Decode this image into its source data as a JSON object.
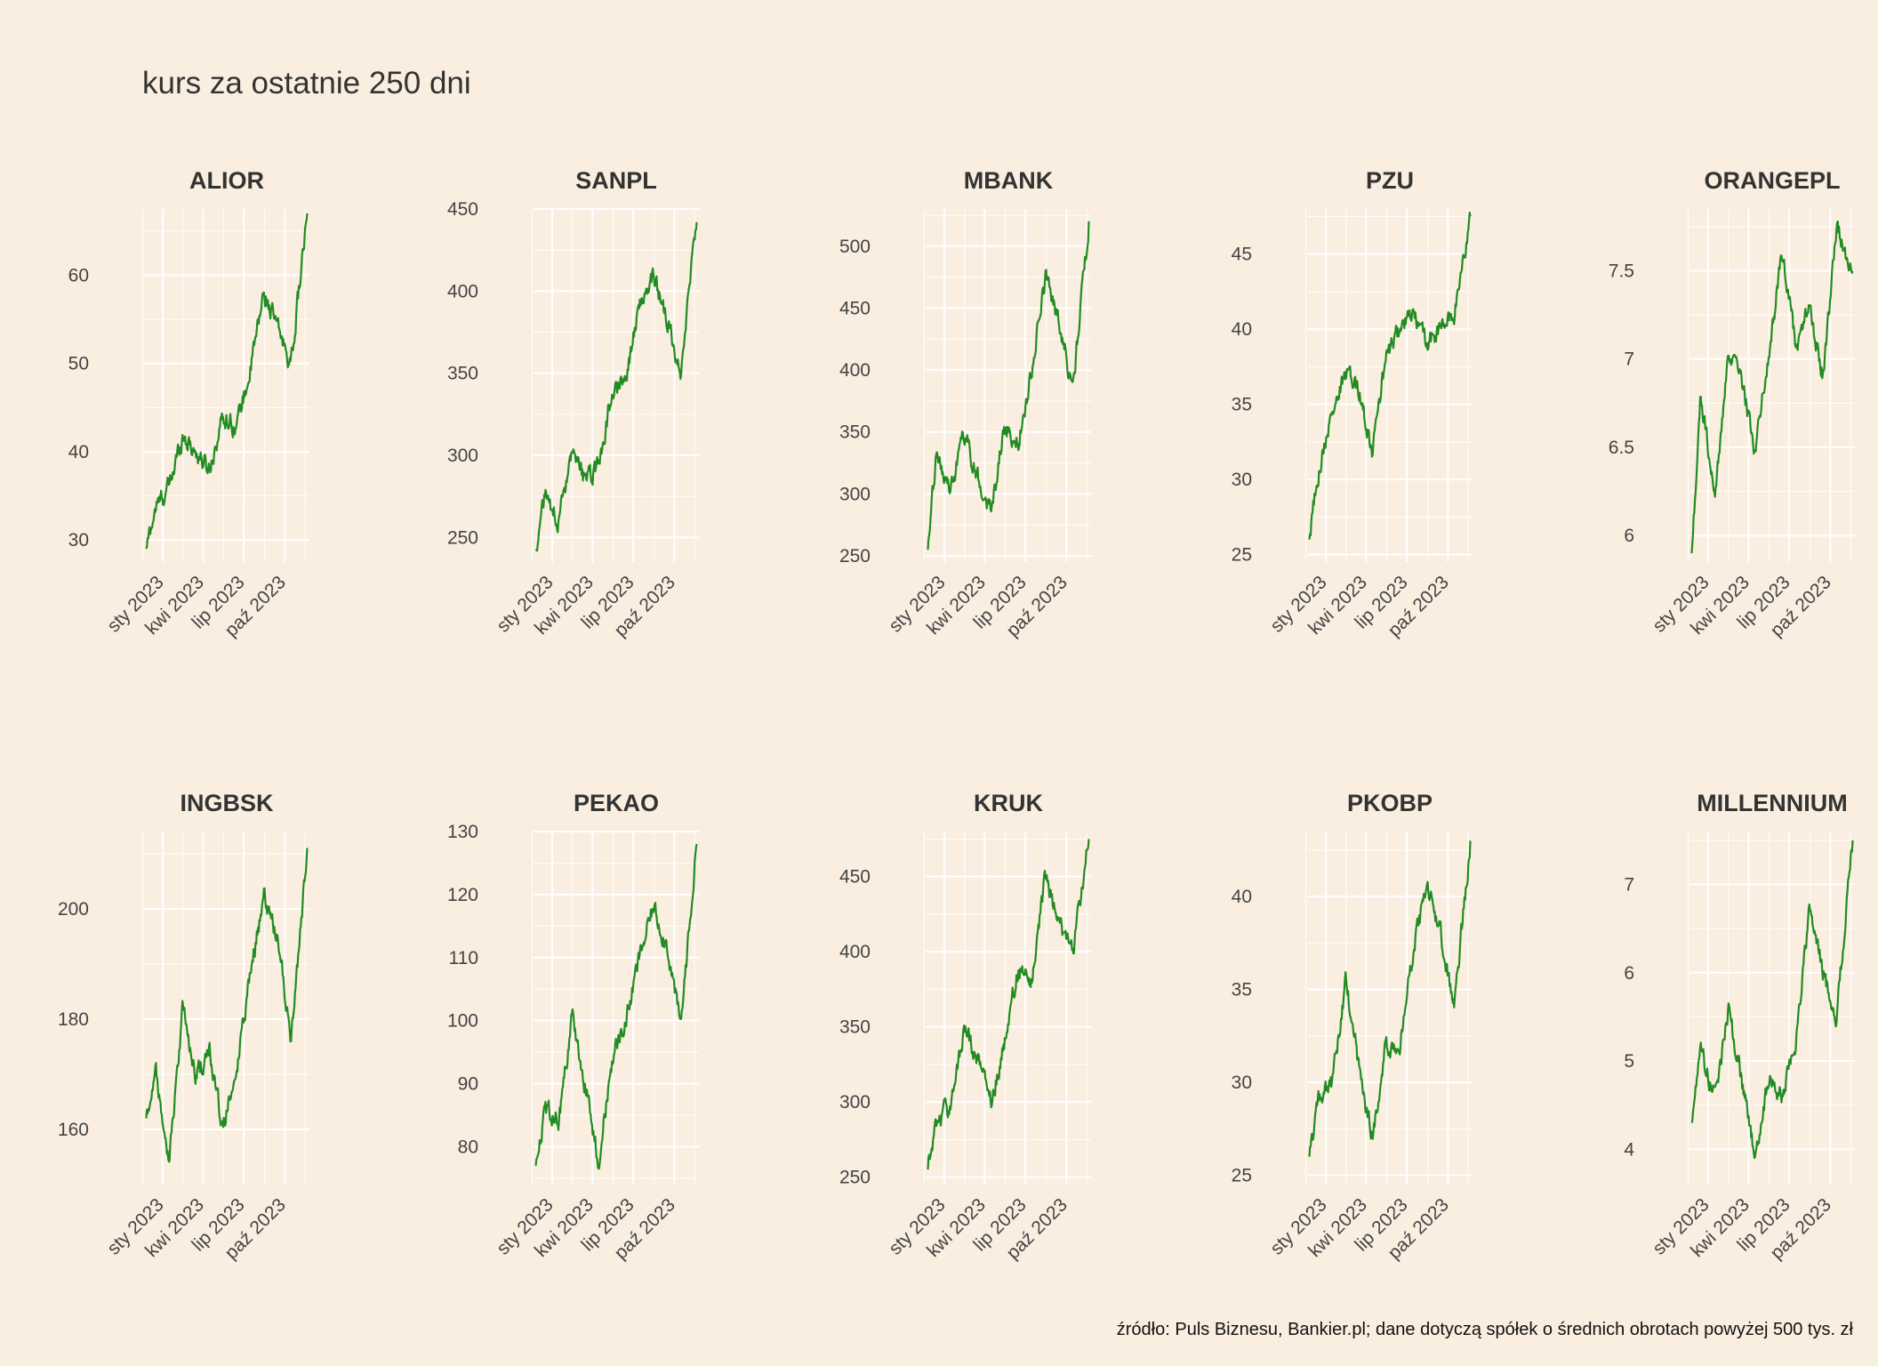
{
  "title": "kurs za ostatnie 250 dni",
  "source": "źródło: Puls Biznesu, Bankier.pl; dane dotyczą spółek o średnich obrotach powyżej 500 tys. zł",
  "colors": {
    "background": "#faeee0",
    "grid": "#ffffff",
    "line": "#228b22",
    "text": "#333333"
  },
  "chart_data": [
    {
      "type": "line",
      "title": "ALIOR",
      "x_ticks": [
        "sty 2023",
        "kwi 2023",
        "lip 2023",
        "paź 2023"
      ],
      "y_ticks": [
        30,
        40,
        50,
        60
      ],
      "ylim": [
        27.5,
        67.5
      ],
      "x": [
        "2022-11",
        "2022-12",
        "2023-01",
        "2023-02",
        "2023-03",
        "2023-04",
        "2023-05",
        "2023-06",
        "2023-07",
        "2023-08",
        "2023-09",
        "2023-10",
        "2023-11"
      ],
      "values": [
        29,
        33.5,
        36,
        42,
        40,
        38,
        44,
        43,
        49,
        58,
        54,
        50,
        67
      ]
    },
    {
      "type": "line",
      "title": "SANPL",
      "x_ticks": [
        "sty 2023",
        "kwi 2023",
        "lip 2023",
        "paź 2023"
      ],
      "y_ticks": [
        250,
        300,
        350,
        400,
        450
      ],
      "ylim": [
        235,
        450
      ],
      "x": [
        "2022-11",
        "2022-12",
        "2023-01",
        "2023-02",
        "2023-03",
        "2023-04",
        "2023-05",
        "2023-06",
        "2023-07",
        "2023-08",
        "2023-09",
        "2023-10",
        "2023-11"
      ],
      "values": [
        242,
        275,
        262,
        298,
        285,
        292,
        340,
        350,
        390,
        410,
        380,
        352,
        442
      ]
    },
    {
      "type": "line",
      "title": "MBANK",
      "x_ticks": [
        "sty 2023",
        "kwi 2023",
        "lip 2023",
        "paź 2023"
      ],
      "y_ticks": [
        250,
        300,
        350,
        400,
        450,
        500
      ],
      "ylim": [
        245,
        530
      ],
      "x": [
        "2022-11",
        "2022-12",
        "2023-01",
        "2023-02",
        "2023-03",
        "2023-04",
        "2023-05",
        "2023-06",
        "2023-07",
        "2023-08",
        "2023-09",
        "2023-10",
        "2023-11"
      ],
      "values": [
        255,
        335,
        300,
        350,
        315,
        285,
        355,
        340,
        400,
        475,
        440,
        385,
        520
      ]
    },
    {
      "type": "line",
      "title": "PZU",
      "x_ticks": [
        "sty 2023",
        "kwi 2023",
        "lip 2023",
        "paź 2023"
      ],
      "y_ticks": [
        25,
        30,
        35,
        40,
        45
      ],
      "ylim": [
        24.5,
        48
      ],
      "x": [
        "2022-11",
        "2022-12",
        "2023-01",
        "2023-02",
        "2023-03",
        "2023-04",
        "2023-05",
        "2023-06",
        "2023-07",
        "2023-08",
        "2023-09",
        "2023-10",
        "2023-11"
      ],
      "values": [
        26,
        30.5,
        34.5,
        37,
        36,
        32,
        38,
        40,
        41,
        39,
        40,
        41,
        47.5
      ]
    },
    {
      "type": "line",
      "title": "ORANGEPL",
      "x_ticks": [
        "sty 2023",
        "kwi 2023",
        "lip 2023",
        "paź 2023"
      ],
      "y_ticks": [
        6.0,
        6.5,
        7.0,
        7.5
      ],
      "ylim": [
        5.85,
        7.85
      ],
      "x": [
        "2022-11",
        "2022-12",
        "2023-01",
        "2023-02",
        "2023-03",
        "2023-04",
        "2023-05",
        "2023-06",
        "2023-07",
        "2023-08",
        "2023-09",
        "2023-10",
        "2023-11"
      ],
      "values": [
        5.9,
        6.8,
        6.2,
        7.0,
        6.9,
        6.5,
        7.0,
        7.6,
        7.1,
        7.3,
        6.9,
        7.75,
        7.5
      ]
    },
    {
      "type": "line",
      "title": "INGBSK",
      "x_ticks": [
        "sty 2023",
        "kwi 2023",
        "lip 2023",
        "paź 2023"
      ],
      "y_ticks": [
        160,
        180,
        200
      ],
      "ylim": [
        150,
        214
      ],
      "x": [
        "2022-11",
        "2022-12",
        "2023-01",
        "2023-02",
        "2023-03",
        "2023-04",
        "2023-05",
        "2023-06",
        "2023-07",
        "2023-08",
        "2023-09",
        "2023-10",
        "2023-11"
      ],
      "values": [
        162,
        172,
        155,
        182,
        170,
        174,
        160,
        170,
        188,
        202,
        195,
        175,
        211
      ]
    },
    {
      "type": "line",
      "title": "PEKAO",
      "x_ticks": [
        "sty 2023",
        "kwi 2023",
        "lip 2023",
        "paź 2023"
      ],
      "y_ticks": [
        80,
        90,
        100,
        110,
        120,
        130
      ],
      "ylim": [
        74,
        130
      ],
      "x": [
        "2022-11",
        "2022-12",
        "2023-01",
        "2023-02",
        "2023-03",
        "2023-04",
        "2023-05",
        "2023-06",
        "2023-07",
        "2023-08",
        "2023-09",
        "2023-10",
        "2023-11"
      ],
      "values": [
        77,
        86,
        84,
        101,
        90,
        78,
        94,
        100,
        110,
        118,
        112,
        99,
        128
      ]
    },
    {
      "type": "line",
      "title": "KRUK",
      "x_ticks": [
        "sty 2023",
        "kwi 2023",
        "lip 2023",
        "paź 2023"
      ],
      "y_ticks": [
        250,
        300,
        350,
        400,
        450
      ],
      "ylim": [
        245,
        480
      ],
      "x": [
        "2022-11",
        "2022-12",
        "2023-01",
        "2023-02",
        "2023-03",
        "2023-04",
        "2023-05",
        "2023-06",
        "2023-07",
        "2023-08",
        "2023-09",
        "2023-10",
        "2023-11"
      ],
      "values": [
        255,
        285,
        300,
        350,
        330,
        300,
        340,
        390,
        380,
        450,
        420,
        400,
        475
      ]
    },
    {
      "type": "line",
      "title": "PKOBP",
      "x_ticks": [
        "sty 2023",
        "kwi 2023",
        "lip 2023",
        "paź 2023"
      ],
      "y_ticks": [
        25,
        30,
        35,
        40
      ],
      "ylim": [
        24.5,
        43.5
      ],
      "x": [
        "2022-11",
        "2022-12",
        "2023-01",
        "2023-02",
        "2023-03",
        "2023-04",
        "2023-05",
        "2023-06",
        "2023-07",
        "2023-08",
        "2023-09",
        "2023-10",
        "2023-11"
      ],
      "values": [
        26,
        29,
        30,
        35.5,
        31,
        27,
        32,
        32,
        37,
        40.5,
        38,
        34,
        43
      ]
    },
    {
      "type": "line",
      "title": "MILLENNIUM",
      "x_ticks": [
        "sty 2023",
        "kwi 2023",
        "lip 2023",
        "paź 2023"
      ],
      "y_ticks": [
        4,
        5,
        6,
        7
      ],
      "ylim": [
        3.6,
        7.6
      ],
      "x": [
        "2022-11",
        "2022-12",
        "2023-01",
        "2023-02",
        "2023-03",
        "2023-04",
        "2023-05",
        "2023-06",
        "2023-07",
        "2023-08",
        "2023-09",
        "2023-10",
        "2023-11"
      ],
      "values": [
        4.3,
        5.1,
        4.6,
        5.6,
        4.8,
        3.9,
        4.8,
        4.6,
        5.2,
        6.7,
        6.0,
        5.5,
        7.5
      ]
    }
  ]
}
